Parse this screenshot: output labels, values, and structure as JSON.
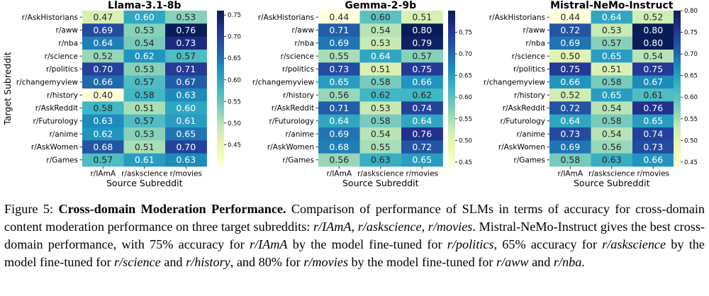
{
  "chart_data": [
    {
      "type": "heatmap",
      "title": "Llama-3.1-8b",
      "xlabel": "Source Subreddit",
      "ylabel": "Target Subreddit",
      "x_categories": [
        "r/IAmA",
        "r/askscience",
        "r/movies"
      ],
      "y_categories": [
        "r/AskHistorians",
        "r/aww",
        "r/nba",
        "r/science",
        "r/politics",
        "r/changemyview",
        "r/history",
        "r/AskReddit",
        "r/Futurology",
        "r/anime",
        "r/AskWomen",
        "r/Games"
      ],
      "values": [
        [
          0.47,
          0.6,
          0.53
        ],
        [
          0.69,
          0.53,
          0.76
        ],
        [
          0.64,
          0.54,
          0.73
        ],
        [
          0.52,
          0.62,
          0.57
        ],
        [
          0.7,
          0.53,
          0.71
        ],
        [
          0.66,
          0.57,
          0.67
        ],
        [
          0.4,
          0.58,
          0.63
        ],
        [
          0.58,
          0.51,
          0.6
        ],
        [
          0.63,
          0.57,
          0.61
        ],
        [
          0.62,
          0.53,
          0.65
        ],
        [
          0.68,
          0.51,
          0.7
        ],
        [
          0.57,
          0.61,
          0.63
        ]
      ],
      "colorbar_range": [
        0.4,
        0.76
      ],
      "colorbar_ticks": [
        "0.45",
        "0.50",
        "0.55",
        "0.60",
        "0.65",
        "0.70",
        "0.75"
      ]
    },
    {
      "type": "heatmap",
      "title": "Gemma-2-9b",
      "xlabel": "Source Subreddit",
      "ylabel": "",
      "x_categories": [
        "r/IAmA",
        "r/askscience",
        "r/movies"
      ],
      "y_categories": [
        "r/AskHistorians",
        "r/aww",
        "r/nba",
        "r/science",
        "r/politics",
        "r/changemyview",
        "r/history",
        "r/AskReddit",
        "r/Futurology",
        "r/anime",
        "r/AskWomen",
        "r/Games"
      ],
      "values": [
        [
          0.44,
          0.6,
          0.51
        ],
        [
          0.71,
          0.54,
          0.8
        ],
        [
          0.69,
          0.53,
          0.79
        ],
        [
          0.55,
          0.64,
          0.57
        ],
        [
          0.73,
          0.51,
          0.75
        ],
        [
          0.65,
          0.58,
          0.66
        ],
        [
          0.56,
          0.62,
          0.62
        ],
        [
          0.71,
          0.53,
          0.74
        ],
        [
          0.64,
          0.58,
          0.64
        ],
        [
          0.69,
          0.54,
          0.76
        ],
        [
          0.68,
          0.55,
          0.72
        ],
        [
          0.56,
          0.63,
          0.65
        ]
      ],
      "colorbar_range": [
        0.44,
        0.8
      ],
      "colorbar_ticks": [
        "0.45",
        "0.50",
        "0.55",
        "0.60",
        "0.65",
        "0.70",
        "0.75"
      ]
    },
    {
      "type": "heatmap",
      "title": "Mistral-NeMo-Instruct",
      "xlabel": "Source Subreddit",
      "ylabel": "",
      "x_categories": [
        "r/IAmA",
        "r/askscience",
        "r/movies"
      ],
      "y_categories": [
        "r/AskHistorians",
        "r/aww",
        "r/nba",
        "r/science",
        "r/politics",
        "r/changemyview",
        "r/history",
        "r/AskReddit",
        "r/Futurology",
        "r/anime",
        "r/AskWomen",
        "r/Games"
      ],
      "values": [
        [
          0.44,
          0.64,
          0.52
        ],
        [
          0.72,
          0.53,
          0.8
        ],
        [
          0.69,
          0.57,
          0.8
        ],
        [
          0.5,
          0.65,
          0.54
        ],
        [
          0.75,
          0.51,
          0.75
        ],
        [
          0.66,
          0.58,
          0.67
        ],
        [
          0.52,
          0.65,
          0.61
        ],
        [
          0.72,
          0.54,
          0.76
        ],
        [
          0.64,
          0.58,
          0.65
        ],
        [
          0.73,
          0.54,
          0.74
        ],
        [
          0.69,
          0.56,
          0.73
        ],
        [
          0.58,
          0.63,
          0.66
        ]
      ],
      "colorbar_range": [
        0.44,
        0.8
      ],
      "colorbar_ticks": [
        "0.45",
        "0.50",
        "0.55",
        "0.60",
        "0.65",
        "0.70",
        "0.75",
        "0.80"
      ]
    }
  ],
  "colormap": [
    "#ffffd9",
    "#edf8b1",
    "#c7e9b4",
    "#7fcdbb",
    "#41b6c4",
    "#1d91c0",
    "#225ea8",
    "#253494",
    "#081d58"
  ],
  "caption": {
    "label": "Figure 5:",
    "title": "Cross-domain Moderation Performance.",
    "text_1": " Comparison of performance of SLMs in terms of accuracy for cross-domain content moderation performance on three target subreddits: ",
    "sub_1": "r/IAmA",
    "text_2": ", ",
    "sub_2": "r/askscience",
    "text_3": ", ",
    "sub_3": "r/movies",
    "text_4": ". Mistral-NeMo-Instruct gives the best cross-domain performance, with 75% accuracy for ",
    "sub_4": "r/IAmA",
    "text_5": " by the model fine-tuned for ",
    "sub_5": "r/politics",
    "text_6": ", 65% accuracy for ",
    "sub_6": "r/askscience",
    "text_7": " by the model fine-tuned for ",
    "sub_7": "r/science",
    "text_8": " and ",
    "sub_8": "r/history",
    "text_9": ", and 80% for ",
    "sub_9": "r/movies",
    "text_10": " by the model fine-tuned for ",
    "sub_10": "r/aww",
    "text_11": " and ",
    "sub_11": "r/nba",
    "text_12": "."
  }
}
